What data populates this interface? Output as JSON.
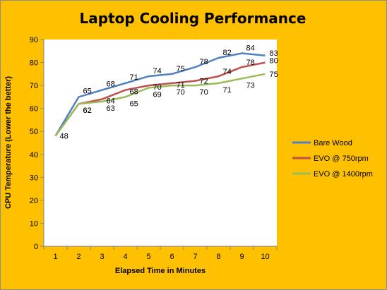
{
  "chart_data": {
    "type": "line",
    "title": "Laptop Cooling Performance",
    "xlabel": "Elapsed Time in Minutes",
    "ylabel": "CPU Temperature (Lower the better)",
    "x": [
      1,
      2,
      3,
      4,
      5,
      6,
      7,
      8,
      9,
      10
    ],
    "ylim": [
      0,
      90
    ],
    "yticks": [
      0,
      10,
      20,
      30,
      40,
      50,
      60,
      70,
      80,
      90
    ],
    "grid": false,
    "legend_position": "right",
    "series": [
      {
        "name": "Bare Wood",
        "color": "#4F81BD",
        "values": [
          48,
          65,
          68,
          71,
          74,
          75,
          78,
          82,
          84,
          83
        ],
        "labels": [
          "",
          "65",
          "68",
          "71",
          "74",
          "75",
          "78",
          "82",
          "84",
          "83"
        ]
      },
      {
        "name": "EVO @ 750rpm",
        "color": "#C0504D",
        "values": [
          48,
          62,
          64,
          68,
          70,
          71,
          72,
          74,
          78,
          80
        ],
        "labels": [
          "",
          "62",
          "64",
          "68",
          "70",
          "71",
          "72",
          "74",
          "78",
          "80"
        ]
      },
      {
        "name": "EVO @ 1400rpm",
        "color": "#9BBB59",
        "values": [
          48,
          62,
          63,
          65,
          69,
          70,
          70,
          71,
          73,
          75
        ],
        "labels": [
          "48",
          "62",
          "63",
          "65",
          "69",
          "70",
          "70",
          "71",
          "73",
          "75"
        ]
      }
    ]
  }
}
